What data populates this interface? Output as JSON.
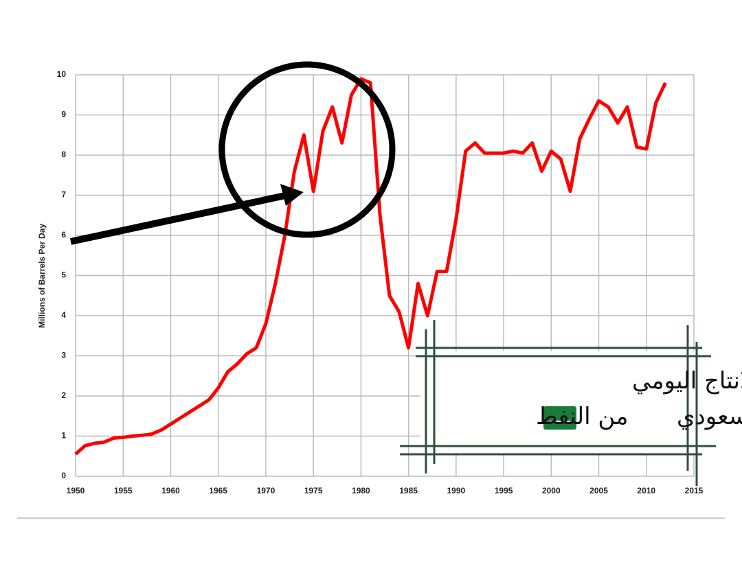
{
  "chart_data": {
    "type": "line",
    "y_label": "Millions of Barrels Per Day",
    "x": [
      1950,
      1951,
      1952,
      1953,
      1954,
      1955,
      1956,
      1957,
      1958,
      1959,
      1960,
      1961,
      1962,
      1963,
      1964,
      1965,
      1966,
      1967,
      1968,
      1969,
      1970,
      1971,
      1972,
      1973,
      1974,
      1975,
      1976,
      1977,
      1978,
      1979,
      1980,
      1981,
      1982,
      1983,
      1984,
      1985,
      1986,
      1987,
      1988,
      1989,
      1990,
      1991,
      1992,
      1993,
      1994,
      1995,
      1996,
      1997,
      1998,
      1999,
      2000,
      2001,
      2002,
      2003,
      2004,
      2005,
      2006,
      2007,
      2008,
      2009,
      2010,
      2011,
      2012
    ],
    "values": [
      0.55,
      0.76,
      0.82,
      0.85,
      0.95,
      0.97,
      1.0,
      1.02,
      1.05,
      1.15,
      1.3,
      1.45,
      1.6,
      1.75,
      1.9,
      2.2,
      2.6,
      2.8,
      3.05,
      3.2,
      3.8,
      4.8,
      6.0,
      7.6,
      8.5,
      7.1,
      8.6,
      9.2,
      8.3,
      9.5,
      9.9,
      9.8,
      6.5,
      4.5,
      4.1,
      3.2,
      4.8,
      4.0,
      5.1,
      5.1,
      6.4,
      8.1,
      8.3,
      8.05,
      8.05,
      8.05,
      8.1,
      8.05,
      8.3,
      7.6,
      8.1,
      7.9,
      7.1,
      8.4,
      8.9,
      9.35,
      9.2,
      8.8,
      9.2,
      8.2,
      8.15,
      9.3,
      9.8
    ],
    "color": "#ff0000",
    "xlim": [
      1950,
      2015
    ],
    "xticks": [
      1950,
      1955,
      1960,
      1965,
      1970,
      1975,
      1980,
      1985,
      1990,
      1995,
      2000,
      2005,
      2010,
      2015
    ],
    "ylim": [
      0,
      10
    ],
    "yticks": [
      0,
      1,
      2,
      3,
      4,
      5,
      6,
      7,
      8,
      9,
      10
    ],
    "grid": true,
    "annotation": {
      "line1": "الانتاج اليومي",
      "line2_right": "السعودي",
      "line2_left": "من النفط"
    }
  }
}
